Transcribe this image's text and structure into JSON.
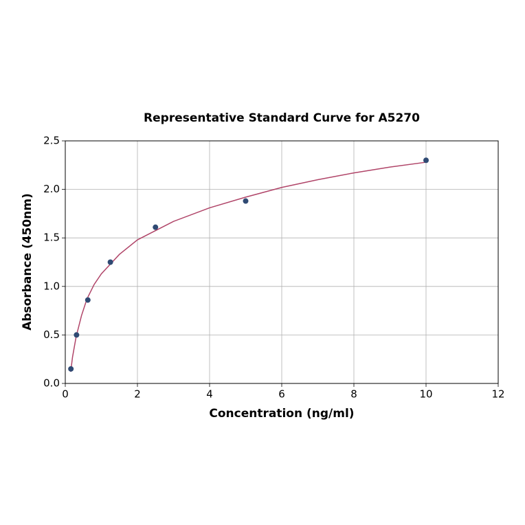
{
  "chart_data": {
    "type": "scatter",
    "title": "Representative Standard Curve for A5270",
    "xlabel": "Concentration (ng/ml)",
    "ylabel": "Absorbance (450nm)",
    "xlim": [
      0,
      12
    ],
    "xticks": [
      0,
      2,
      4,
      6,
      8,
      10,
      12
    ],
    "ylim": [
      0,
      2.5
    ],
    "yticks": [
      {
        "value": 0,
        "label": "0.0"
      },
      0.5,
      {
        "value": 1,
        "label": "1.0"
      },
      1.5,
      {
        "value": 2,
        "label": "2.0"
      },
      2.5
    ],
    "grid": true,
    "series": [
      {
        "mode": "markers",
        "color": "#2f4a73",
        "x": [
          0.156,
          0.312,
          0.625,
          1.25,
          2.5,
          5,
          10
        ],
        "values": [
          0.15,
          0.5,
          0.86,
          1.25,
          1.61,
          1.88,
          2.3
        ]
      },
      {
        "mode": "line",
        "color": "#b04468",
        "x": [
          0.15,
          0.2,
          0.3,
          0.45,
          0.6,
          0.8,
          1,
          1.5,
          2,
          3,
          4,
          5,
          6,
          7,
          8,
          9,
          10
        ],
        "values": [
          0.12,
          0.27,
          0.48,
          0.7,
          0.87,
          1.02,
          1.13,
          1.33,
          1.48,
          1.67,
          1.81,
          1.92,
          2.02,
          2.1,
          2.17,
          2.23,
          2.28
        ]
      }
    ]
  }
}
